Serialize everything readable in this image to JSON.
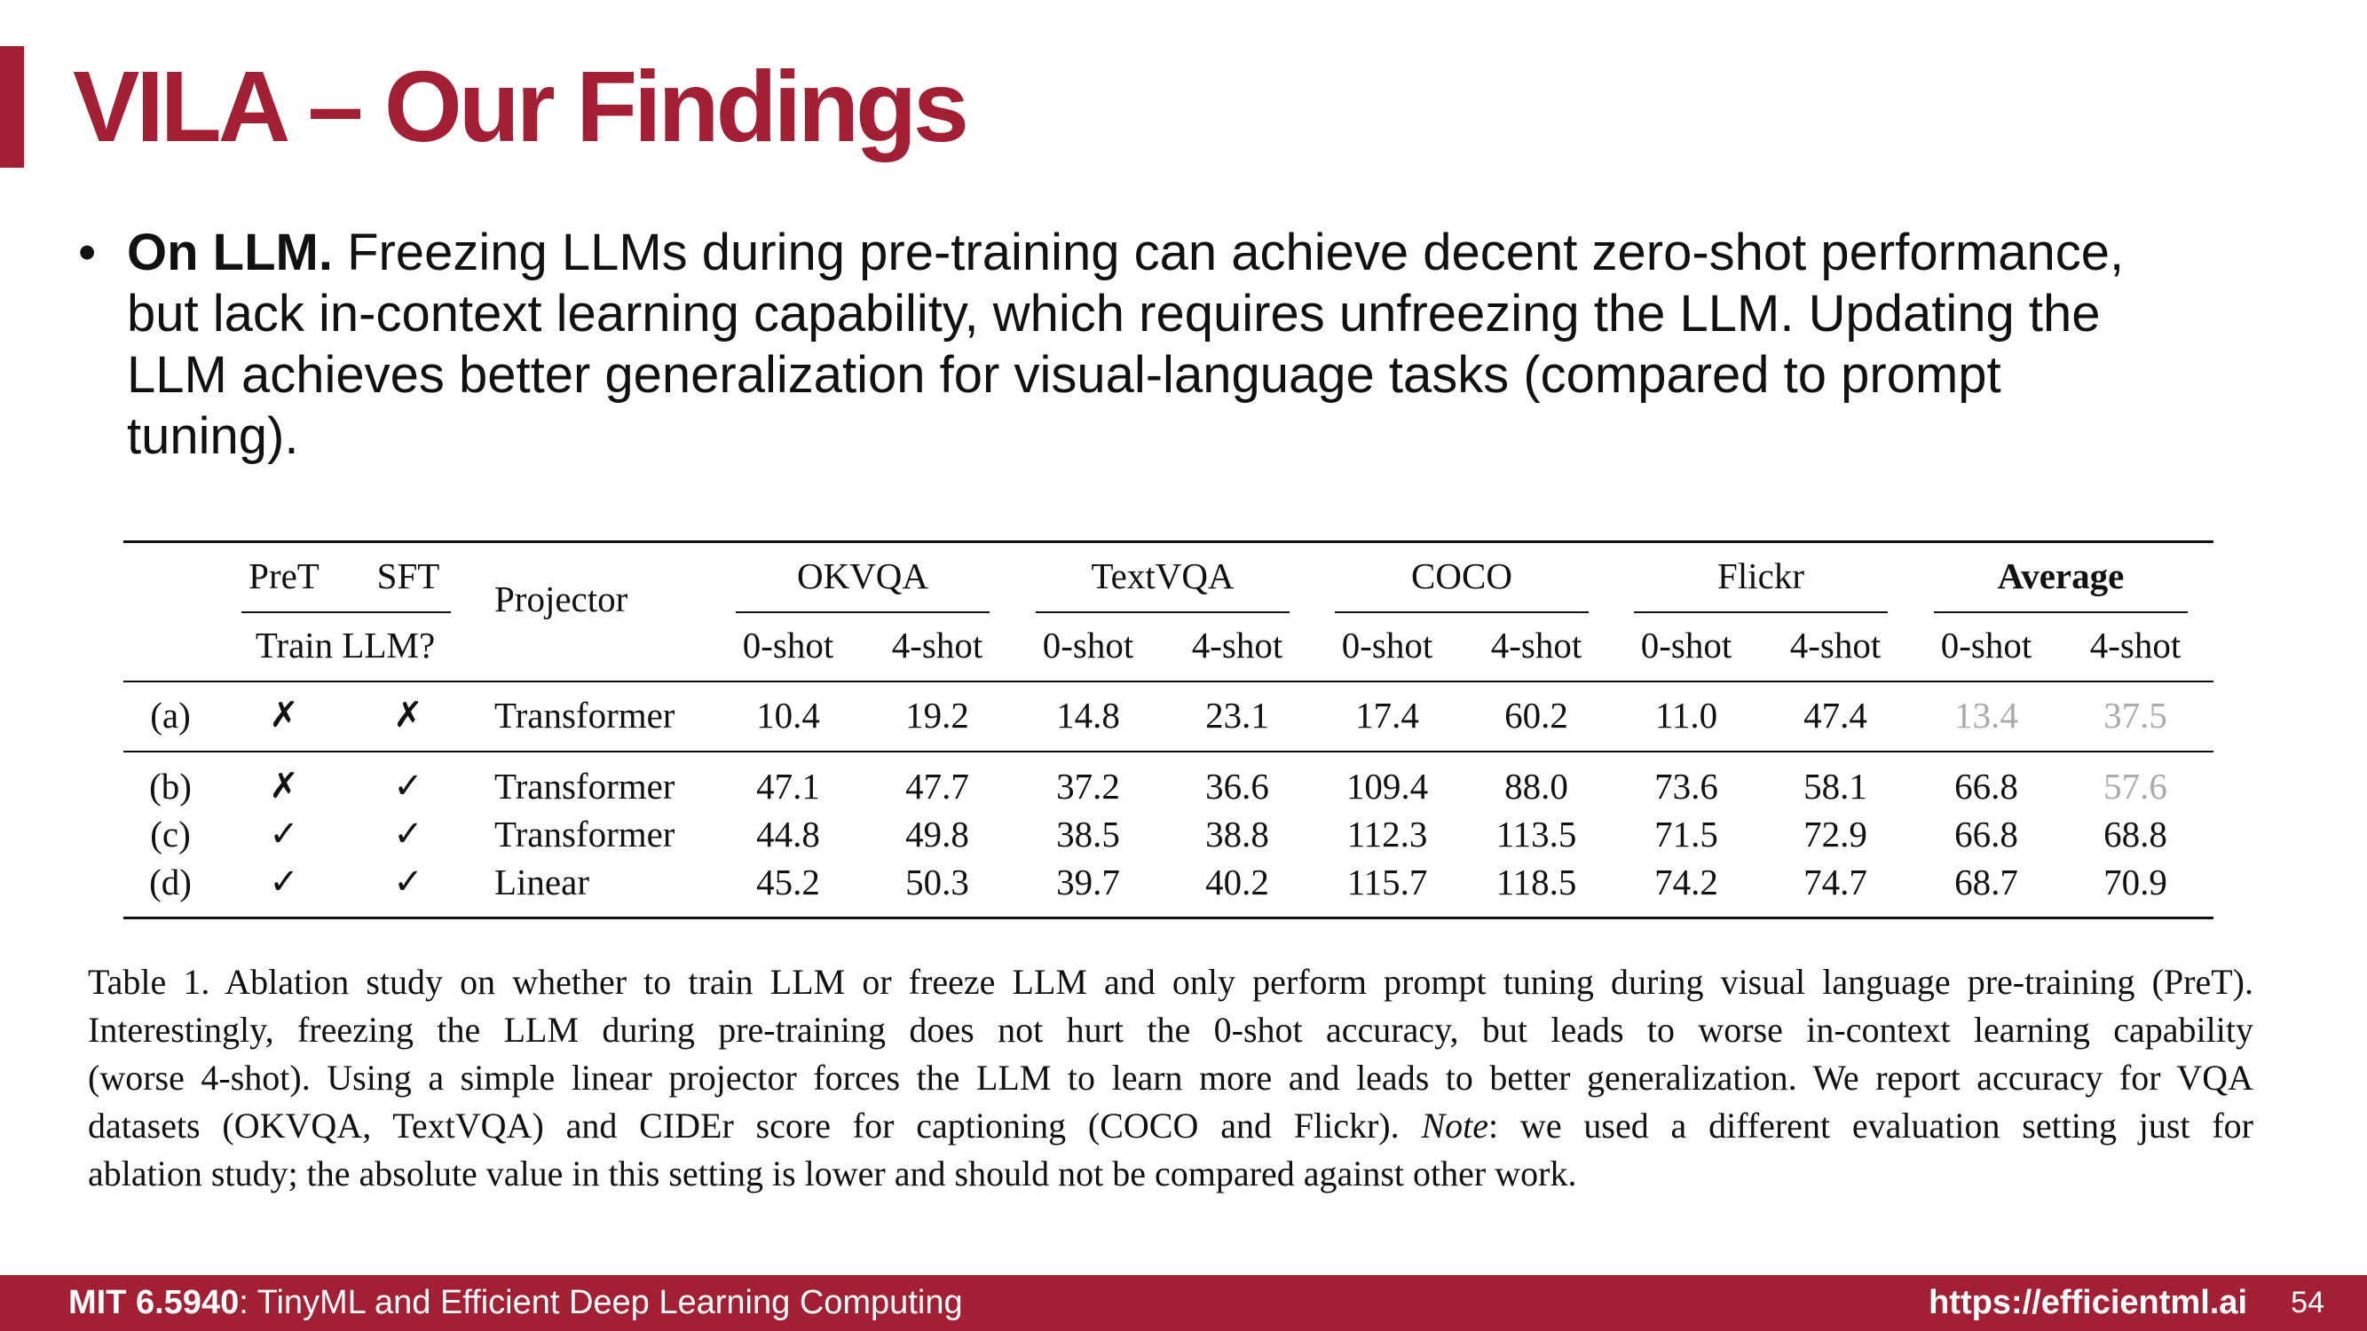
{
  "slide": {
    "title": "VILA – Our Findings",
    "bullet": {
      "head": "On LLM.",
      "line1": " Freezing LLMs during pre-training can achieve decent zero-shot performance,",
      "line2": "but lack in-context learning capability, which requires unfreezing the LLM. Updating the",
      "line3": "LLM achieves better generalization for visual-language tasks (compared to prompt",
      "line4": "tuning)."
    }
  },
  "table": {
    "header": {
      "pret": "PreT",
      "sft": "SFT",
      "train_llm": "Train LLM?",
      "projector": "Projector",
      "groups": [
        "OKVQA",
        "TextVQA",
        "COCO",
        "Flickr",
        "Average"
      ],
      "shots": [
        "0-shot",
        "4-shot"
      ]
    },
    "rows": [
      {
        "id": "(a)",
        "pret": "✗",
        "sft": "✗",
        "projector": "Transformer",
        "values": [
          "10.4",
          "19.2",
          "14.8",
          "23.1",
          "17.4",
          "60.2",
          "11.0",
          "47.4",
          "13.4",
          "37.5"
        ]
      },
      {
        "id": "(b)",
        "pret": "✗",
        "sft": "✓",
        "projector": "Transformer",
        "values": [
          "47.1",
          "47.7",
          "37.2",
          "36.6",
          "109.4",
          "88.0",
          "73.6",
          "58.1",
          "66.8",
          "57.6"
        ]
      },
      {
        "id": "(c)",
        "pret": "✓",
        "sft": "✓",
        "projector": "Transformer",
        "values": [
          "44.8",
          "49.8",
          "38.5",
          "38.8",
          "112.3",
          "113.5",
          "71.5",
          "72.9",
          "66.8",
          "68.8"
        ]
      },
      {
        "id": "(d)",
        "pret": "✓",
        "sft": "✓",
        "projector": "Linear",
        "values": [
          "45.2",
          "50.3",
          "39.7",
          "40.2",
          "115.7",
          "118.5",
          "74.2",
          "74.7",
          "68.7",
          "70.9"
        ]
      }
    ],
    "grey_cells": [
      "0-8",
      "0-9",
      "1-9"
    ]
  },
  "caption": {
    "line1": "Table 1. Ablation study on whether to train LLM or freeze LLM and only perform prompt tuning during visual language pre-training (PreT).",
    "line2": "Interestingly, freezing the LLM during pre-training does not hurt the 0-shot accuracy, but leads to worse in-context learning capability",
    "line3": "(worse 4-shot). Using a simple linear projector forces the LLM to learn more and leads to better generalization. We report accuracy for VQA",
    "line4_pre": "datasets (OKVQA, TextVQA) and CIDEr score for captioning (COCO and Flickr). ",
    "line4_note": "Note",
    "line4_post": ": we used a different evaluation setting just for",
    "line5": "ablation study; the absolute value in this setting is lower and should not be compared against other work."
  },
  "footer": {
    "course_code": "MIT 6.5940",
    "course_name": ": TinyML and Efficient Deep Learning Computing",
    "url": "https://efficientml.ai",
    "page": "54"
  },
  "colors": {
    "brand": "#a31f34",
    "grey_value": "#aaaaaa"
  }
}
